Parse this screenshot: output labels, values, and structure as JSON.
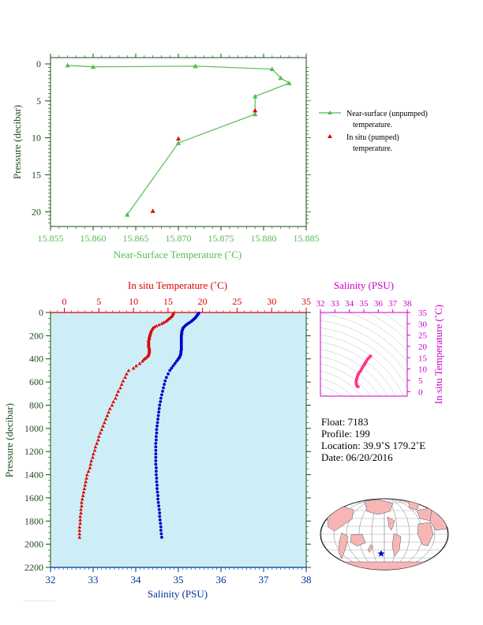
{
  "colors": {
    "top_green": "#55bb55",
    "temp_red": "#dd0000",
    "sal_blue": "#0000cc",
    "sal_pink": "#cc00cc",
    "bottom_axis": "#003399",
    "plot_bg": "#cdeef7"
  },
  "chart_data": [
    {
      "type": "line",
      "xlabel": "Near-Surface Temperature (˚C)",
      "ylabel": "Pressure (decibar)",
      "xlim": [
        15.855,
        15.885
      ],
      "ylim": [
        0,
        22
      ],
      "y_inverted": true,
      "xticks": [
        "15.855",
        "15.860",
        "15.865",
        "15.870",
        "15.875",
        "15.880",
        "15.885"
      ],
      "yticks": [
        "0",
        "5",
        "10",
        "15",
        "20"
      ],
      "grid": false,
      "legend_position": "right",
      "series": [
        {
          "name": "Near-surface (unpumped) temperature.",
          "marker": "triangle",
          "points": [
            [
              15.857,
              0.2
            ],
            [
              15.86,
              0.4
            ],
            [
              15.872,
              0.3
            ],
            [
              15.881,
              0.7
            ],
            [
              15.882,
              1.9
            ],
            [
              15.883,
              2.6
            ],
            [
              15.879,
              4.4
            ],
            [
              15.879,
              6.8
            ],
            [
              15.87,
              10.7
            ],
            [
              15.864,
              20.4
            ]
          ]
        },
        {
          "name": "In situ (pumped) temperature.",
          "marker": "triangle",
          "points": [
            [
              15.879,
              6.3
            ],
            [
              15.87,
              10.1
            ],
            [
              15.867,
              19.9
            ]
          ]
        }
      ],
      "legend_lines": [
        [
          "Near-surface (unpumped)",
          "temperature."
        ],
        [
          "In situ (pumped)",
          "temperature."
        ]
      ]
    },
    {
      "type": "scatter",
      "xlabel_top": "In situ Temperature (˚C)",
      "xlabel_bottom": "Salinity (PSU)",
      "ylabel": "Pressure (decibar)",
      "temp_lim": [
        -2,
        35
      ],
      "sal_lim": [
        32,
        38
      ],
      "ylim": [
        0,
        2200
      ],
      "y_inverted": true,
      "temp_ticks": [
        "0",
        "5",
        "10",
        "15",
        "20",
        "25",
        "30",
        "35"
      ],
      "sal_ticks": [
        "32",
        "33",
        "34",
        "35",
        "36",
        "37",
        "38"
      ],
      "pressure_ticks": [
        "0",
        "200",
        "400",
        "600",
        "800",
        "1000",
        "1200",
        "1400",
        "1600",
        "1800",
        "2000",
        "2200"
      ],
      "grid": false,
      "series": [
        {
          "name": "In situ Temperature",
          "points": [
            [
              15.8,
              5
            ],
            [
              15.7,
              15
            ],
            [
              15.6,
              25
            ],
            [
              15.5,
              35
            ],
            [
              15.3,
              45
            ],
            [
              15.1,
              55
            ],
            [
              14.9,
              65
            ],
            [
              14.7,
              75
            ],
            [
              14.4,
              85
            ],
            [
              14.1,
              95
            ],
            [
              13.7,
              105
            ],
            [
              13.3,
              115
            ],
            [
              13.0,
              125
            ],
            [
              12.8,
              135
            ],
            [
              12.7,
              145
            ],
            [
              12.6,
              155
            ],
            [
              12.5,
              165
            ],
            [
              12.5,
              175
            ],
            [
              12.4,
              185
            ],
            [
              12.4,
              195
            ],
            [
              12.3,
              205
            ],
            [
              12.3,
              215
            ],
            [
              12.3,
              225
            ],
            [
              12.2,
              235
            ],
            [
              12.2,
              245
            ],
            [
              12.2,
              255
            ],
            [
              12.2,
              265
            ],
            [
              12.2,
              275
            ],
            [
              12.2,
              285
            ],
            [
              12.2,
              295
            ],
            [
              12.3,
              305
            ],
            [
              12.3,
              315
            ],
            [
              12.3,
              325
            ],
            [
              12.3,
              335
            ],
            [
              12.3,
              345
            ],
            [
              12.2,
              355
            ],
            [
              12.2,
              365
            ],
            [
              12.1,
              375
            ],
            [
              11.9,
              385
            ],
            [
              11.7,
              395
            ],
            [
              11.5,
              405
            ],
            [
              11.3,
              420
            ],
            [
              10.9,
              440
            ],
            [
              10.4,
              460
            ],
            [
              10.0,
              480
            ],
            [
              9.3,
              500
            ],
            [
              9.0,
              530
            ],
            [
              8.8,
              560
            ],
            [
              8.5,
              590
            ],
            [
              8.3,
              620
            ],
            [
              8.1,
              650
            ],
            [
              7.8,
              680
            ],
            [
              7.6,
              710
            ],
            [
              7.4,
              740
            ],
            [
              7.1,
              770
            ],
            [
              6.9,
              800
            ],
            [
              6.6,
              830
            ],
            [
              6.4,
              860
            ],
            [
              6.2,
              890
            ],
            [
              6.0,
              920
            ],
            [
              5.8,
              950
            ],
            [
              5.6,
              980
            ],
            [
              5.4,
              1010
            ],
            [
              5.2,
              1040
            ],
            [
              5.0,
              1070
            ],
            [
              4.9,
              1100
            ],
            [
              4.7,
              1130
            ],
            [
              4.5,
              1160
            ],
            [
              4.4,
              1190
            ],
            [
              4.2,
              1220
            ],
            [
              4.1,
              1250
            ],
            [
              3.9,
              1280
            ],
            [
              3.8,
              1310
            ],
            [
              3.7,
              1340
            ],
            [
              3.5,
              1370
            ],
            [
              3.3,
              1400
            ],
            [
              3.2,
              1430
            ],
            [
              3.1,
              1460
            ],
            [
              3.0,
              1490
            ],
            [
              2.9,
              1520
            ],
            [
              2.8,
              1550
            ],
            [
              2.7,
              1580
            ],
            [
              2.6,
              1610
            ],
            [
              2.5,
              1640
            ],
            [
              2.5,
              1670
            ],
            [
              2.4,
              1700
            ],
            [
              2.4,
              1730
            ],
            [
              2.3,
              1760
            ],
            [
              2.3,
              1790
            ],
            [
              2.3,
              1820
            ],
            [
              2.2,
              1850
            ],
            [
              2.2,
              1880
            ],
            [
              2.2,
              1910
            ],
            [
              2.2,
              1940
            ]
          ]
        },
        {
          "name": "Salinity",
          "points": [
            [
              35.48,
              5
            ],
            [
              35.46,
              15
            ],
            [
              35.44,
              25
            ],
            [
              35.42,
              35
            ],
            [
              35.4,
              45
            ],
            [
              35.37,
              55
            ],
            [
              35.34,
              65
            ],
            [
              35.31,
              75
            ],
            [
              35.27,
              85
            ],
            [
              35.23,
              95
            ],
            [
              35.19,
              105
            ],
            [
              35.16,
              115
            ],
            [
              35.13,
              125
            ],
            [
              35.11,
              135
            ],
            [
              35.1,
              145
            ],
            [
              35.09,
              155
            ],
            [
              35.08,
              165
            ],
            [
              35.08,
              175
            ],
            [
              35.08,
              185
            ],
            [
              35.07,
              195
            ],
            [
              35.07,
              205
            ],
            [
              35.07,
              215
            ],
            [
              35.07,
              225
            ],
            [
              35.07,
              235
            ],
            [
              35.07,
              245
            ],
            [
              35.07,
              255
            ],
            [
              35.07,
              265
            ],
            [
              35.07,
              275
            ],
            [
              35.07,
              285
            ],
            [
              35.07,
              295
            ],
            [
              35.07,
              305
            ],
            [
              35.07,
              315
            ],
            [
              35.07,
              325
            ],
            [
              35.06,
              335
            ],
            [
              35.06,
              345
            ],
            [
              35.06,
              355
            ],
            [
              35.05,
              365
            ],
            [
              35.04,
              375
            ],
            [
              35.03,
              385
            ],
            [
              35.01,
              395
            ],
            [
              34.99,
              405
            ],
            [
              34.96,
              420
            ],
            [
              34.92,
              440
            ],
            [
              34.88,
              460
            ],
            [
              34.84,
              480
            ],
            [
              34.8,
              500
            ],
            [
              34.76,
              530
            ],
            [
              34.72,
              560
            ],
            [
              34.69,
              590
            ],
            [
              34.67,
              620
            ],
            [
              34.65,
              650
            ],
            [
              34.63,
              680
            ],
            [
              34.61,
              710
            ],
            [
              34.59,
              740
            ],
            [
              34.58,
              770
            ],
            [
              34.56,
              800
            ],
            [
              34.55,
              830
            ],
            [
              34.54,
              860
            ],
            [
              34.53,
              890
            ],
            [
              34.52,
              920
            ],
            [
              34.51,
              950
            ],
            [
              34.5,
              980
            ],
            [
              34.49,
              1010
            ],
            [
              34.49,
              1040
            ],
            [
              34.48,
              1070
            ],
            [
              34.48,
              1100
            ],
            [
              34.47,
              1130
            ],
            [
              34.47,
              1160
            ],
            [
              34.47,
              1190
            ],
            [
              34.47,
              1220
            ],
            [
              34.47,
              1250
            ],
            [
              34.47,
              1280
            ],
            [
              34.47,
              1310
            ],
            [
              34.48,
              1340
            ],
            [
              34.48,
              1370
            ],
            [
              34.48,
              1400
            ],
            [
              34.49,
              1430
            ],
            [
              34.49,
              1460
            ],
            [
              34.5,
              1490
            ],
            [
              34.5,
              1520
            ],
            [
              34.51,
              1550
            ],
            [
              34.52,
              1580
            ],
            [
              34.52,
              1610
            ],
            [
              34.53,
              1640
            ],
            [
              34.54,
              1670
            ],
            [
              34.55,
              1700
            ],
            [
              34.56,
              1730
            ],
            [
              34.56,
              1760
            ],
            [
              34.57,
              1790
            ],
            [
              34.58,
              1820
            ],
            [
              34.59,
              1850
            ],
            [
              34.59,
              1880
            ],
            [
              34.6,
              1910
            ],
            [
              34.61,
              1940
            ]
          ]
        }
      ]
    },
    {
      "type": "scatter",
      "xlabel": "Salinity (PSU)",
      "ylabel": "In situ Temperature (˚C)",
      "xlim": [
        32,
        38
      ],
      "ylim": [
        -2,
        35
      ],
      "xticks": [
        "32",
        "33",
        "34",
        "35",
        "36",
        "37",
        "38"
      ],
      "yticks": [
        "0",
        "5",
        "10",
        "15",
        "20",
        "25",
        "30",
        "35"
      ],
      "grid": false
    }
  ],
  "info": {
    "float": "Float:  7183",
    "profile": "Profile:  199",
    "location": "Location:  39.9˚S  179.2˚E",
    "date": "Date:  06/20/2016"
  }
}
